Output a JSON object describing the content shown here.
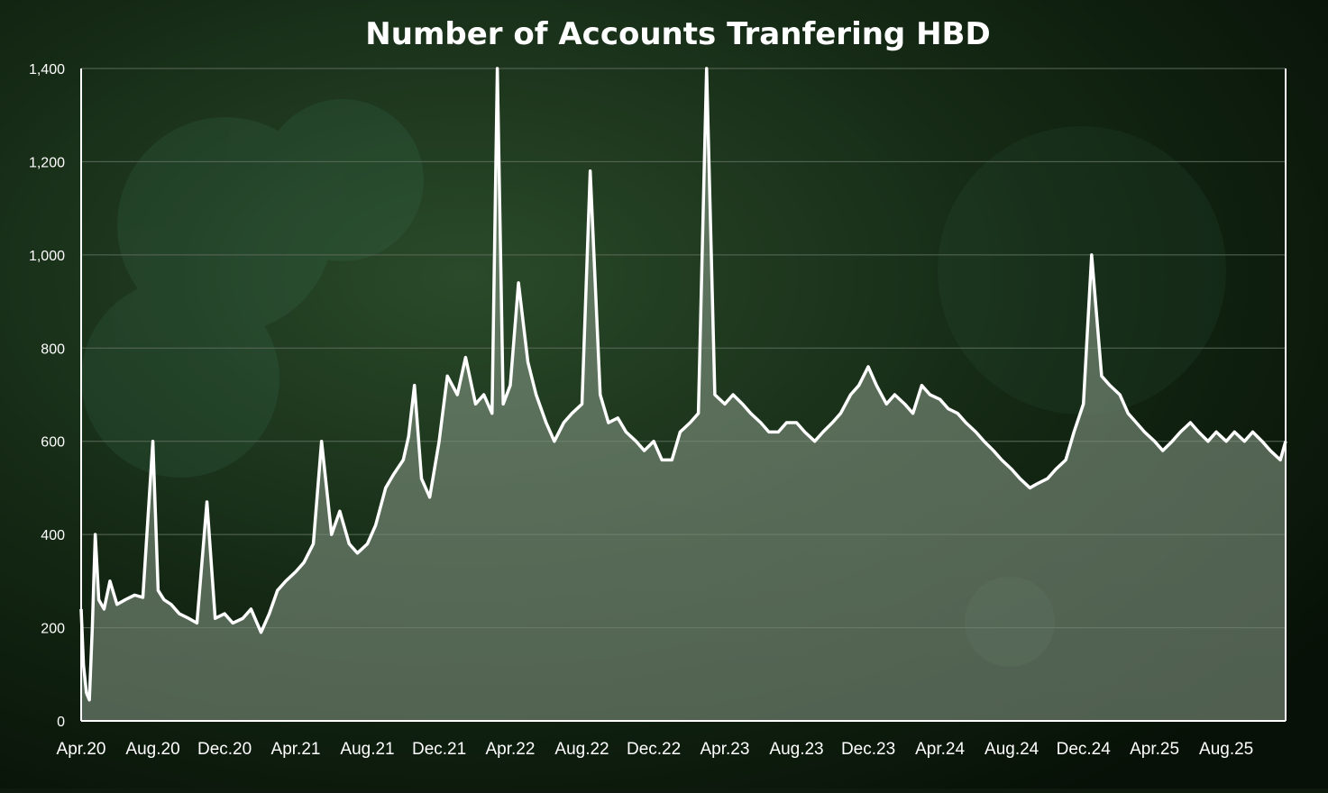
{
  "chart_data": {
    "type": "area",
    "title": "Number of Accounts Tranfering HBD",
    "xlabel": "",
    "ylabel": "",
    "ylim": [
      0,
      1400
    ],
    "yticks": [
      0,
      200,
      400,
      600,
      800,
      1000,
      1200,
      1400
    ],
    "ytick_labels": [
      "0",
      "200",
      "400",
      "600",
      "800",
      "1,000",
      "1,200",
      "1,400"
    ],
    "xlim": [
      "2020-04-01",
      "2025-11-10"
    ],
    "xtick_labels": [
      "Apr.20",
      "Aug.20",
      "Dec.20",
      "Apr.21",
      "Aug.21",
      "Dec.21",
      "Apr.22",
      "Aug.22",
      "Dec.22",
      "Apr.23",
      "Aug.23",
      "Dec.23",
      "Apr.24",
      "Aug.24",
      "Dec.24",
      "Apr.25",
      "Aug.25"
    ],
    "xtick_dates": [
      "2020-04-01",
      "2020-08-01",
      "2020-12-01",
      "2021-04-01",
      "2021-08-01",
      "2021-12-01",
      "2022-04-01",
      "2022-08-01",
      "2022-12-01",
      "2023-04-01",
      "2023-08-01",
      "2023-12-01",
      "2024-04-01",
      "2024-08-01",
      "2024-12-01",
      "2025-04-01",
      "2025-08-01"
    ],
    "grid": true,
    "legend": "none",
    "colors": {
      "line": "#ffffff",
      "fill": "#8a9a8a",
      "grid": "#5a6a5a",
      "axis": "#ffffff",
      "text": "#ffffff",
      "background": "#0d1a0d"
    },
    "series": [
      {
        "values_note_free": true,
        "x": [
          "2020-04-01",
          "2020-04-05",
          "2020-04-10",
          "2020-04-15",
          "2020-04-20",
          "2020-04-25",
          "2020-05-01",
          "2020-05-10",
          "2020-05-20",
          "2020-06-01",
          "2020-06-15",
          "2020-07-01",
          "2020-07-15",
          "2020-08-01",
          "2020-08-10",
          "2020-08-20",
          "2020-09-01",
          "2020-09-15",
          "2020-10-01",
          "2020-10-15",
          "2020-11-01",
          "2020-11-15",
          "2020-12-01",
          "2020-12-15",
          "2021-01-01",
          "2021-01-15",
          "2021-02-01",
          "2021-02-15",
          "2021-03-01",
          "2021-03-15",
          "2021-04-01",
          "2021-04-15",
          "2021-05-01",
          "2021-05-15",
          "2021-06-01",
          "2021-06-15",
          "2021-07-01",
          "2021-07-15",
          "2021-08-01",
          "2021-08-15",
          "2021-09-01",
          "2021-09-15",
          "2021-10-01",
          "2021-10-10",
          "2021-10-20",
          "2021-11-01",
          "2021-11-15",
          "2021-12-01",
          "2021-12-15",
          "2022-01-01",
          "2022-01-15",
          "2022-02-01",
          "2022-02-15",
          "2022-03-01",
          "2022-03-10",
          "2022-03-20",
          "2022-04-01",
          "2022-04-15",
          "2022-05-01",
          "2022-05-15",
          "2022-06-01",
          "2022-06-15",
          "2022-07-01",
          "2022-07-15",
          "2022-08-01",
          "2022-08-15",
          "2022-09-01",
          "2022-09-15",
          "2022-10-01",
          "2022-10-15",
          "2022-11-01",
          "2022-11-15",
          "2022-12-01",
          "2022-12-15",
          "2023-01-01",
          "2023-01-15",
          "2023-02-01",
          "2023-02-15",
          "2023-03-01",
          "2023-03-15",
          "2023-04-01",
          "2023-04-15",
          "2023-05-01",
          "2023-05-15",
          "2023-06-01",
          "2023-06-15",
          "2023-07-01",
          "2023-07-15",
          "2023-08-01",
          "2023-08-15",
          "2023-09-01",
          "2023-09-15",
          "2023-10-01",
          "2023-10-15",
          "2023-11-01",
          "2023-11-15",
          "2023-12-01",
          "2023-12-15",
          "2024-01-01",
          "2024-01-15",
          "2024-02-01",
          "2024-02-15",
          "2024-03-01",
          "2024-03-15",
          "2024-04-01",
          "2024-04-15",
          "2024-05-01",
          "2024-05-15",
          "2024-06-01",
          "2024-06-15",
          "2024-07-01",
          "2024-07-15",
          "2024-08-01",
          "2024-08-15",
          "2024-09-01",
          "2024-09-15",
          "2024-10-01",
          "2024-10-15",
          "2024-11-01",
          "2024-11-15",
          "2024-12-01",
          "2024-12-15",
          "2025-01-01",
          "2025-01-15",
          "2025-02-01",
          "2025-02-15",
          "2025-03-01",
          "2025-03-15",
          "2025-04-01",
          "2025-04-15",
          "2025-05-01",
          "2025-05-15",
          "2025-06-01",
          "2025-06-15",
          "2025-07-01",
          "2025-07-15",
          "2025-08-01",
          "2025-08-15",
          "2025-09-01",
          "2025-09-15",
          "2025-10-01",
          "2025-10-15",
          "2025-11-01",
          "2025-11-10"
        ],
        "values": [
          240,
          120,
          60,
          45,
          200,
          400,
          260,
          240,
          300,
          250,
          260,
          270,
          265,
          600,
          280,
          260,
          250,
          230,
          220,
          210,
          470,
          220,
          230,
          210,
          220,
          240,
          190,
          230,
          280,
          300,
          320,
          340,
          380,
          600,
          400,
          450,
          380,
          360,
          380,
          420,
          500,
          530,
          560,
          610,
          720,
          520,
          480,
          600,
          740,
          700,
          780,
          680,
          700,
          660,
          1400,
          680,
          720,
          940,
          770,
          700,
          640,
          600,
          640,
          660,
          680,
          1180,
          700,
          640,
          650,
          620,
          600,
          580,
          600,
          560,
          560,
          620,
          640,
          660,
          1400,
          700,
          680,
          700,
          680,
          660,
          640,
          620,
          620,
          640,
          640,
          620,
          600,
          620,
          640,
          660,
          700,
          720,
          760,
          720,
          680,
          700,
          680,
          660,
          720,
          700,
          690,
          670,
          660,
          640,
          620,
          600,
          580,
          560,
          540,
          520,
          500,
          510,
          520,
          540,
          560,
          620,
          680,
          1000,
          740,
          720,
          700,
          660,
          640,
          620,
          600,
          580,
          600,
          620,
          640,
          620,
          600,
          620,
          600,
          620,
          600,
          620,
          600,
          580,
          560,
          600
        ]
      }
    ]
  }
}
